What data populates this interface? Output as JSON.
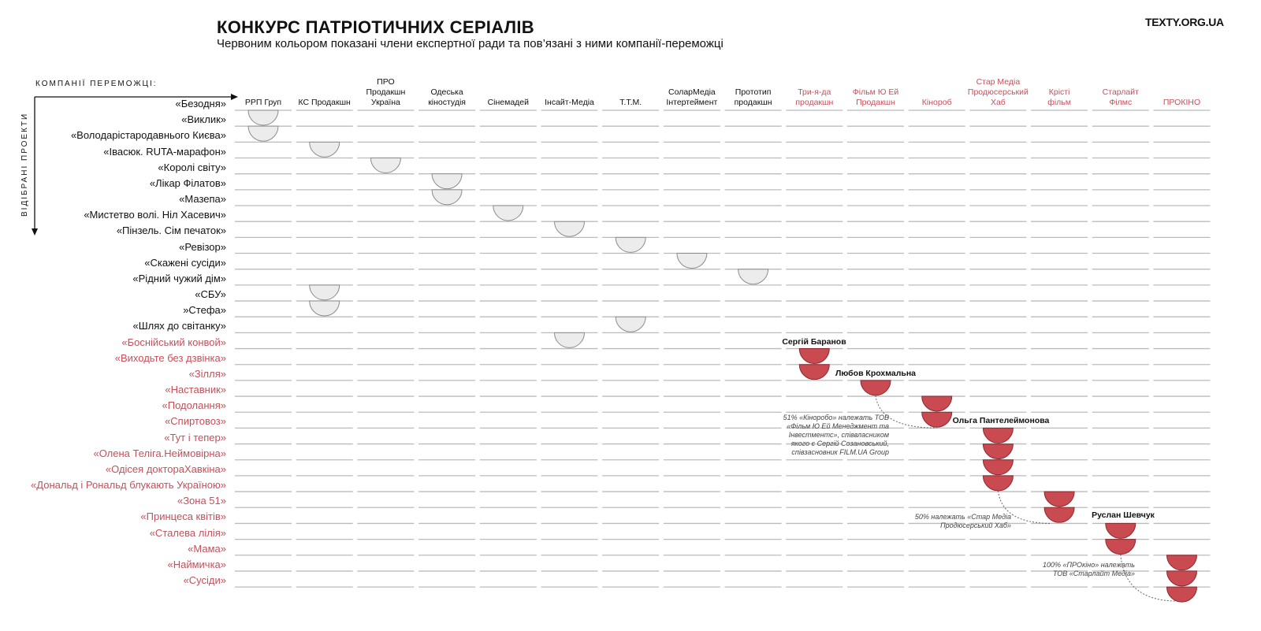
{
  "header": {
    "title": "КОНКУРС ПАТРІОТИЧНИХ СЕРІАЛІВ",
    "subtitle": "Червоним кольором показані члени експертної ради та пов’язані з ними компанії-переможці",
    "brand": "TEXTY.ORG.UA"
  },
  "axes": {
    "x_label": "КОМПАНІЇ ПЕРЕМОЖЦІ:",
    "y_label": "ВІДІБРАНІ ПРОЕКТИ"
  },
  "colors": {
    "text": "#111111",
    "red_text": "#c4505a",
    "red_fill": "#c94a50",
    "red_stroke": "#8a2a2e",
    "grey_fill": "#ececec",
    "grey_stroke": "#8c8c8c",
    "grid": "#bbbbbb"
  },
  "companies": [
    {
      "label": "РРП Груп",
      "highlight": false
    },
    {
      "label": "КС Продакшн",
      "highlight": false
    },
    {
      "label": "ПРО\nПродакшн\nУкраїна",
      "highlight": false
    },
    {
      "label": "Одеська\nкіностудія",
      "highlight": false
    },
    {
      "label": "Сінемадей",
      "highlight": false
    },
    {
      "label": "Інсайт-Медіа",
      "highlight": false
    },
    {
      "label": "Т.Т.М.",
      "highlight": false
    },
    {
      "label": "СоларМедіа\nІнтертеймент",
      "highlight": false
    },
    {
      "label": "Прототип\nпродакшн",
      "highlight": false
    },
    {
      "label": "Три-я-да\nпродакшн",
      "highlight": true
    },
    {
      "label": "Фільм Ю Ей\nПродакшн",
      "highlight": true
    },
    {
      "label": "Кінороб",
      "highlight": true
    },
    {
      "label": "Стар Медіа\nПродюсерський\nХаб",
      "highlight": true
    },
    {
      "label": "Крісті\nфільм",
      "highlight": true
    },
    {
      "label": "Старлайт\nФілмс",
      "highlight": true
    },
    {
      "label": "ПРОКІНО",
      "highlight": true
    }
  ],
  "projects": [
    {
      "label": "«Безодня»",
      "company": 0,
      "highlight": false
    },
    {
      "label": "«Виклик»",
      "company": 0,
      "highlight": false
    },
    {
      "label": "«Володарістародавнього Києва»",
      "company": 1,
      "highlight": false
    },
    {
      "label": "«Івасюк. RUTA-марафон»",
      "company": 2,
      "highlight": false
    },
    {
      "label": "«Королі світу»",
      "company": 3,
      "highlight": false
    },
    {
      "label": "«Лікар Філатов»",
      "company": 3,
      "highlight": false
    },
    {
      "label": "«Мазепа»",
      "company": 4,
      "highlight": false
    },
    {
      "label": "«Мистетво волі. Ніл Хасевич»",
      "company": 5,
      "highlight": false
    },
    {
      "label": "«Пінзель. Сім печаток»",
      "company": 6,
      "highlight": false
    },
    {
      "label": "«Ревізор»",
      "company": 7,
      "highlight": false
    },
    {
      "label": "«Скажені сусіди»",
      "company": 8,
      "highlight": false
    },
    {
      "label": "«Рідний чужий дім»",
      "company": 1,
      "highlight": false
    },
    {
      "label": "«СБУ»",
      "company": 1,
      "highlight": false
    },
    {
      "label": "»Стефа»",
      "company": 6,
      "highlight": false
    },
    {
      "label": "«Шлях до світанку»",
      "company": 5,
      "highlight": false
    },
    {
      "label": "«Боснійський конвой»",
      "company": 9,
      "highlight": true
    },
    {
      "label": "«Виходьте без дзвінка»",
      "company": 9,
      "highlight": true
    },
    {
      "label": "«Зілля»",
      "company": 10,
      "highlight": true
    },
    {
      "label": "«Наставник»",
      "company": 11,
      "highlight": true
    },
    {
      "label": "«Подолання»",
      "company": 11,
      "highlight": true
    },
    {
      "label": "«Спиртовоз»",
      "company": 12,
      "highlight": true
    },
    {
      "label": "«Тут і тепер»",
      "company": 12,
      "highlight": true
    },
    {
      "label": "«Олена Теліга.Неймовірна»",
      "company": 12,
      "highlight": true
    },
    {
      "label": "«Одісея доктораХавкіна»",
      "company": 12,
      "highlight": true
    },
    {
      "label": "«Дональд і Рональд блукають Україною»",
      "company": 13,
      "highlight": true
    },
    {
      "label": "«Зона 51»",
      "company": 13,
      "highlight": true
    },
    {
      "label": "«Принцеса квітів»",
      "company": 14,
      "highlight": true
    },
    {
      "label": "«Сталева лілія»",
      "company": 14,
      "highlight": true
    },
    {
      "label": "«Мама»",
      "company": 15,
      "highlight": true
    },
    {
      "label": "«Наймичка»",
      "company": 15,
      "highlight": true
    },
    {
      "label": "«Сусіди»",
      "company": 15,
      "highlight": true
    }
  ],
  "experts": [
    {
      "name": "Сергій Баранов",
      "company": 9
    },
    {
      "name": "Любов Крохмальна",
      "company": 10
    },
    {
      "name": "Ольга Пантелеймонова",
      "company": 12
    },
    {
      "name": "Руслан Шевчук",
      "company": 14
    }
  ],
  "notes": [
    "51% «Кіноробо» належать ТОВ\n«Фільм Ю Ей Менеджмент та\nІнвестментс», співвласником\nякого є Сергій Созановський,\nспівзасновник FILM.UA Group",
    "50% належать «Стар Медіа\nПродюсерський Хаб»",
    "100% «ПРОкіно» належать\nТОВ «Старлайт Медіа»"
  ]
}
